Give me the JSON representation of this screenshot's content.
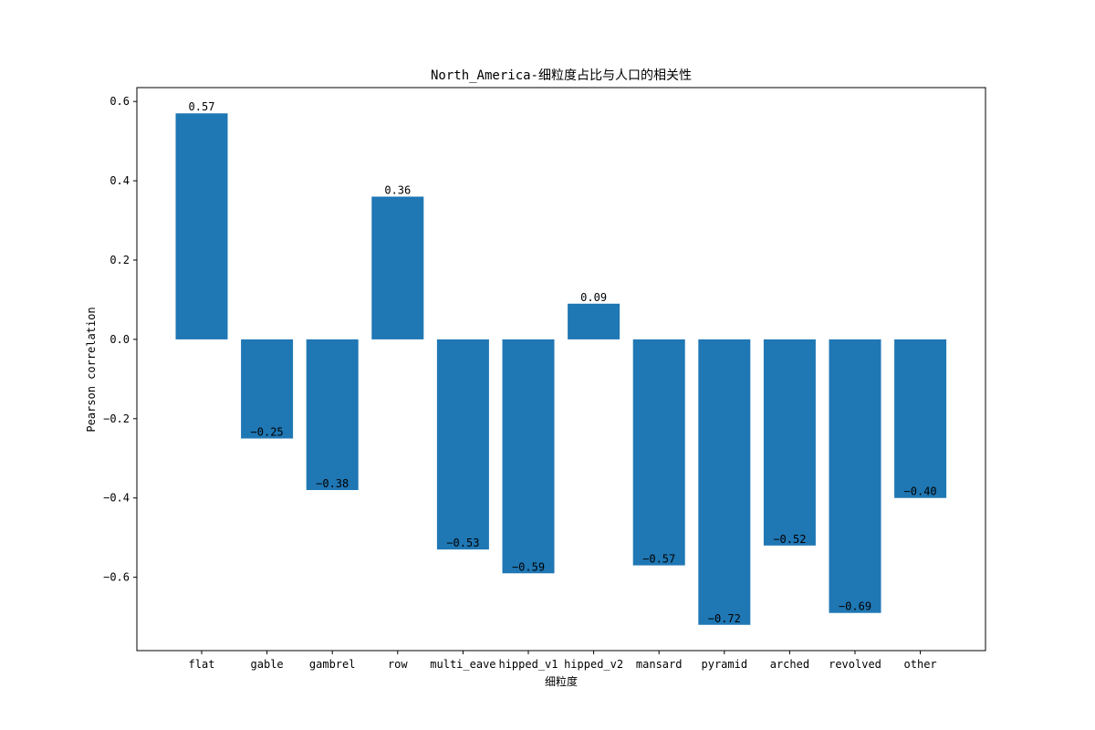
{
  "chart_data": {
    "type": "bar",
    "title": "North_America-细粒度占比与人口的相关性",
    "xlabel": "细粒度",
    "ylabel": "Pearson correlation",
    "categories": [
      "flat",
      "gable",
      "gambrel",
      "row",
      "multi_eave",
      "hipped_v1",
      "hipped_v2",
      "mansard",
      "pyramid",
      "arched",
      "revolved",
      "other"
    ],
    "values": [
      0.57,
      -0.25,
      -0.38,
      0.36,
      -0.53,
      -0.59,
      0.09,
      -0.57,
      -0.72,
      -0.52,
      -0.69,
      -0.4
    ],
    "data_labels": [
      "0.57",
      "−0.25",
      "−0.38",
      "0.36",
      "−0.53",
      "−0.59",
      "0.09",
      "−0.57",
      "−0.72",
      "−0.52",
      "−0.69",
      "−0.40"
    ],
    "ylim": [
      -0.785,
      0.635
    ],
    "yticks": [
      0.6,
      0.4,
      0.2,
      0.0,
      -0.2,
      -0.4,
      -0.6
    ],
    "ytick_labels": [
      "0.6",
      "0.4",
      "0.2",
      "0.0",
      "−0.2",
      "−0.4",
      "−0.6"
    ],
    "grid": false,
    "legend": "none",
    "bar_color": "#1f77b4"
  }
}
